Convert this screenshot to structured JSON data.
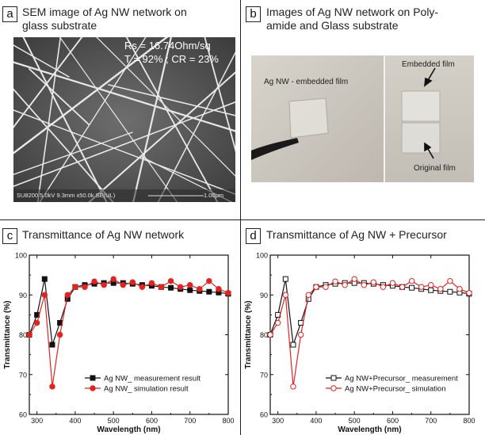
{
  "panels": {
    "a": {
      "label": "a",
      "title_line1": "SEM image of Ag NW network on",
      "title_line2": "glass substrate",
      "rs": "Rs = 16.74Ohm/sq",
      "tcr": "T  = 92% ;  CR = 23%",
      "footer_left": "SU8200 5.0kV 9.3mm x50.0k SE(UL)",
      "footer_right": "1.00μm"
    },
    "b": {
      "label": "b",
      "title_line1": "Images of Ag NW network on Poly-",
      "title_line2": "amide and Glass substrate",
      "label_left": "Ag NW - embedded film",
      "label_embedded": "Embedded film",
      "label_original": "Original film"
    },
    "c": {
      "label": "c",
      "title": "Transmittance of Ag NW network"
    },
    "d": {
      "label": "d",
      "title": "Transmittance of Ag NW + Precursor"
    }
  },
  "chart_data": [
    {
      "type": "line",
      "title": "Transmittance of Ag NW network",
      "xlabel": "Wavelength (nm)",
      "ylabel": "Transmittance (%)",
      "xlim": [
        280,
        800
      ],
      "ylim": [
        60,
        100
      ],
      "xticks": [
        300,
        400,
        500,
        600,
        700,
        800
      ],
      "yticks": [
        60,
        70,
        80,
        90,
        100
      ],
      "legend_position": "bottom-right",
      "series": [
        {
          "name": "Ag NW_ measurement result",
          "marker": "filled-square",
          "color": "#111111",
          "x": [
            280,
            300,
            320,
            340,
            360,
            380,
            400,
            425,
            450,
            475,
            500,
            525,
            550,
            575,
            600,
            625,
            650,
            675,
            700,
            725,
            750,
            775,
            800
          ],
          "y": [
            80,
            85,
            94,
            77.5,
            83,
            89,
            92,
            92.5,
            92.8,
            93,
            93,
            93,
            92.8,
            92.5,
            92.3,
            92,
            91.8,
            91.5,
            91.2,
            91,
            90.8,
            90.6,
            90.3
          ]
        },
        {
          "name": "Ag NW_ simulation result",
          "marker": "filled-circle",
          "color": "#e52222",
          "x": [
            280,
            300,
            320,
            340,
            360,
            380,
            400,
            425,
            450,
            475,
            500,
            525,
            550,
            575,
            600,
            625,
            650,
            675,
            700,
            725,
            750,
            775,
            800
          ],
          "y": [
            80,
            83,
            90,
            67,
            80,
            90,
            92,
            92,
            93.4,
            92.5,
            94,
            92.5,
            93.2,
            92,
            93,
            92,
            93.5,
            92,
            92.5,
            91.5,
            93.5,
            91.5,
            90.5
          ]
        }
      ]
    },
    {
      "type": "line",
      "title": "Transmittance of Ag NW + Precursor",
      "xlabel": "Wavelength (nm)",
      "ylabel": "Transmittance (%)",
      "xlim": [
        280,
        800
      ],
      "ylim": [
        60,
        100
      ],
      "xticks": [
        300,
        400,
        500,
        600,
        700,
        800
      ],
      "yticks": [
        60,
        70,
        80,
        90,
        100
      ],
      "legend_position": "bottom-right",
      "series": [
        {
          "name": "Ag NW+Precursor_ measurement",
          "marker": "open-square",
          "color": "#111111",
          "x": [
            280,
            300,
            320,
            340,
            360,
            380,
            400,
            425,
            450,
            475,
            500,
            525,
            550,
            575,
            600,
            625,
            650,
            675,
            700,
            725,
            750,
            775,
            800
          ],
          "y": [
            80,
            85,
            94,
            77.5,
            83,
            89,
            92,
            92.5,
            92.8,
            93,
            93,
            93,
            92.8,
            92.5,
            92.3,
            92,
            91.8,
            91.5,
            91.2,
            91,
            90.8,
            90.6,
            90.3
          ]
        },
        {
          "name": "Ag NW+Precursor_ simulation",
          "marker": "open-circle",
          "color": "#e52222",
          "x": [
            280,
            300,
            320,
            340,
            360,
            380,
            400,
            425,
            450,
            475,
            500,
            525,
            550,
            575,
            600,
            625,
            650,
            675,
            700,
            725,
            750,
            775,
            800
          ],
          "y": [
            80,
            83,
            90,
            67,
            80,
            90,
            92,
            92,
            93.4,
            92.5,
            94,
            92.5,
            93.2,
            92,
            93,
            92,
            93.5,
            92,
            92.5,
            91.5,
            93.5,
            91.5,
            90.5
          ]
        }
      ]
    }
  ]
}
